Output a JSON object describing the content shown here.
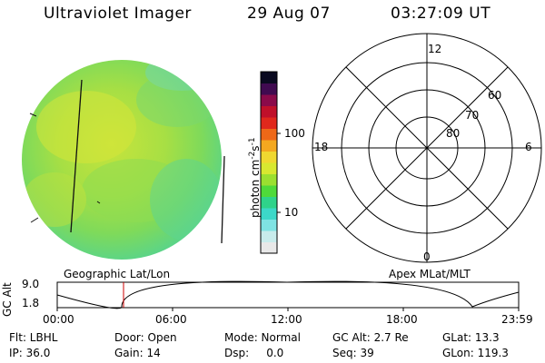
{
  "header": {
    "instrument": "Ultraviolet Imager",
    "date": "29 Aug 07",
    "time": "03:27:09 UT"
  },
  "colorbar": {
    "unit_label": "photon cm",
    "unit_sup1": "-2",
    "unit_mid": "s",
    "unit_sup2": "-1",
    "ticks": [
      {
        "label": "100"
      },
      {
        "label": "10"
      }
    ],
    "colors": [
      "#e8e8e8",
      "#c8ecec",
      "#7fe3e3",
      "#3cd8c8",
      "#2fd38a",
      "#4fda3a",
      "#9be030",
      "#d8e830",
      "#f0d830",
      "#f4a820",
      "#ee6818",
      "#e0281c",
      "#c0102a",
      "#8a0a4a",
      "#400a50",
      "#0a0a20"
    ]
  },
  "polar": {
    "mlt_labels": [
      "12",
      "6",
      "0",
      "18"
    ],
    "lat_labels": [
      "60",
      "70",
      "80"
    ]
  },
  "timeline": {
    "left_label": "Geographic Lat/Lon",
    "right_label": "Apex  MLat/MLT",
    "ylabel": "GC Alt",
    "yticks": [
      "9.0",
      "1.8"
    ],
    "xticks": [
      "00:00",
      "06:00",
      "12:00",
      "18:00",
      "23:59"
    ],
    "current_marker_hours": 3.45,
    "marker_color": "#cc0000"
  },
  "info": {
    "flt": "Flt: LBHL",
    "door": "Door: Open",
    "mode": "Mode: Normal",
    "gcalt": "GC Alt: 2.7 Re",
    "glat": "GLat:  13.3",
    "ip": "IP: 36.0",
    "gain": "Gain: 14",
    "dsp": "Dsp:     0.0",
    "seq": "Seq: 39",
    "glon": "GLon: 119.3"
  }
}
